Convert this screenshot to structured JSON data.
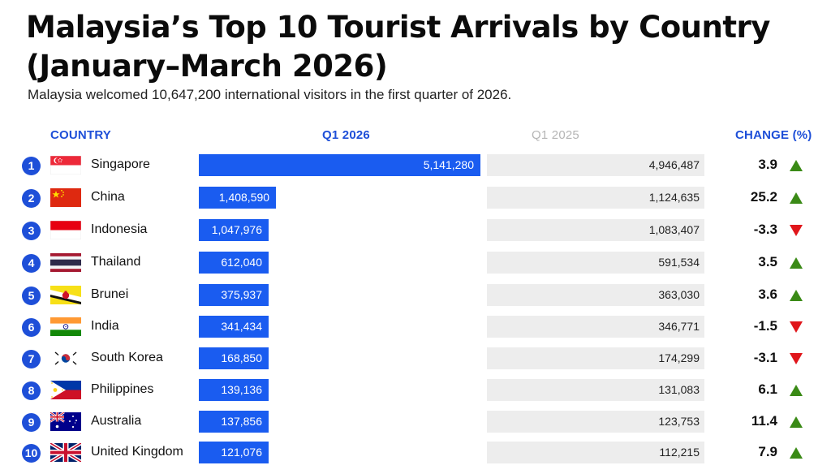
{
  "header": {
    "title": "Malaysia’s Top 10 Tourist Arrivals by Country (January–March 2026)",
    "subtitle": "Malaysia welcomed 10,647,200 international visitors in the first quarter of 2026."
  },
  "columns": {
    "country": "COUNTRY",
    "q1_2026": "Q1 2026",
    "q1_2025": "Q1 2025",
    "change": "CHANGE (%)"
  },
  "colors": {
    "accent": "#1e4fd8",
    "bar_2026": "#1a5cf0",
    "bar_2025": "#ededed",
    "up": "#3a8a16",
    "down": "#e0161b"
  },
  "chart_data": {
    "type": "bar",
    "title": "Malaysia’s Top 10 Tourist Arrivals by Country (January–March 2026)",
    "subtitle": "Malaysia welcomed 10,647,200 international visitors in the first quarter of 2026.",
    "categories": [
      "Singapore",
      "China",
      "Indonesia",
      "Thailand",
      "Brunei",
      "India",
      "South Korea",
      "Philippines",
      "Australia",
      "United Kingdom"
    ],
    "series": [
      {
        "name": "Q1 2026",
        "values": [
          5141280,
          1408590,
          1047976,
          612040,
          375937,
          341434,
          168850,
          139136,
          137856,
          121076
        ]
      },
      {
        "name": "Q1 2025",
        "values": [
          4946487,
          1124635,
          1083407,
          591534,
          363030,
          346771,
          174299,
          131083,
          123753,
          112215
        ]
      }
    ],
    "rows": [
      {
        "rank": "1",
        "country": "Singapore",
        "flag": "singapore-flag",
        "q1_2026": 5141280,
        "q1_2026_label": "5,141,280",
        "q1_2025": 4946487,
        "q1_2025_label": "4,946,487",
        "change": "3.9",
        "direction": "up"
      },
      {
        "rank": "2",
        "country": "China",
        "flag": "china-flag",
        "q1_2026": 1408590,
        "q1_2026_label": "1,408,590",
        "q1_2025": 1124635,
        "q1_2025_label": "1,124,635",
        "change": "25.2",
        "direction": "up"
      },
      {
        "rank": "3",
        "country": "Indonesia",
        "flag": "indonesia-flag",
        "q1_2026": 1047976,
        "q1_2026_label": "1,047,976",
        "q1_2025": 1083407,
        "q1_2025_label": "1,083,407",
        "change": "-3.3",
        "direction": "down"
      },
      {
        "rank": "4",
        "country": "Thailand",
        "flag": "thailand-flag",
        "q1_2026": 612040,
        "q1_2026_label": "612,040",
        "q1_2025": 591534,
        "q1_2025_label": "591,534",
        "change": "3.5",
        "direction": "up"
      },
      {
        "rank": "5",
        "country": "Brunei",
        "flag": "brunei-flag",
        "q1_2026": 375937,
        "q1_2026_label": "375,937",
        "q1_2025": 363030,
        "q1_2025_label": "363,030",
        "change": "3.6",
        "direction": "up"
      },
      {
        "rank": "6",
        "country": "India",
        "flag": "india-flag",
        "q1_2026": 341434,
        "q1_2026_label": "341,434",
        "q1_2025": 346771,
        "q1_2025_label": "346,771",
        "change": "-1.5",
        "direction": "down"
      },
      {
        "rank": "7",
        "country": "South Korea",
        "flag": "south-korea-flag",
        "q1_2026": 168850,
        "q1_2026_label": "168,850",
        "q1_2025": 174299,
        "q1_2025_label": "174,299",
        "change": "-3.1",
        "direction": "down"
      },
      {
        "rank": "8",
        "country": "Philippines",
        "flag": "philippines-flag",
        "q1_2026": 139136,
        "q1_2026_label": "139,136",
        "q1_2025": 131083,
        "q1_2025_label": "131,083",
        "change": "6.1",
        "direction": "up"
      },
      {
        "rank": "9",
        "country": "Australia",
        "flag": "australia-flag",
        "q1_2026": 137856,
        "q1_2026_label": "137,856",
        "q1_2025": 123753,
        "q1_2025_label": "123,753",
        "change": "11.4",
        "direction": "up"
      },
      {
        "rank": "10",
        "country": "United Kingdom",
        "flag": "united-kingdom-flag",
        "q1_2026": 121076,
        "q1_2026_label": "121,076",
        "q1_2025": 112215,
        "q1_2025_label": "112,215",
        "change": "7.9",
        "direction": "up"
      }
    ]
  }
}
